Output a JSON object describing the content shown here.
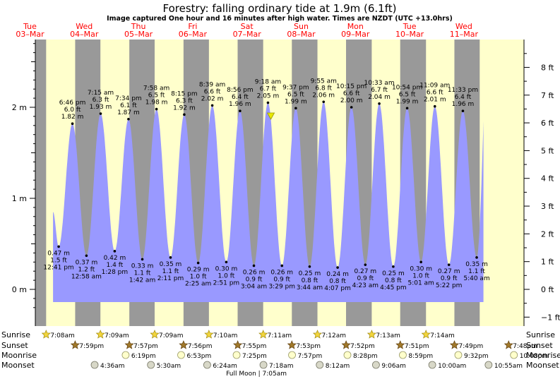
{
  "header": {
    "title": "Forestry: falling  ordinary tide at 1.9m (6.1ft)",
    "subtitle": "Image captured One hour and 16 minutes after high water. Times are NZDT (UTC +13.0hrs)"
  },
  "colors": {
    "day": "#ffffcc",
    "night": "#999999",
    "tide": "#9999ff",
    "date_text": "#ff0000"
  },
  "days": [
    {
      "dow": "Tue",
      "date": "03–Mar"
    },
    {
      "dow": "Wed",
      "date": "04–Mar"
    },
    {
      "dow": "Thu",
      "date": "05–Mar"
    },
    {
      "dow": "Fri",
      "date": "06–Mar"
    },
    {
      "dow": "Sat",
      "date": "07–Mar"
    },
    {
      "dow": "Sun",
      "date": "08–Mar"
    },
    {
      "dow": "Mon",
      "date": "09–Mar"
    },
    {
      "dow": "Tue",
      "date": "10–Mar"
    },
    {
      "dow": "Wed",
      "date": "11–Mar"
    }
  ],
  "chart_data": {
    "type": "area",
    "y_axis_left": {
      "unit": "m",
      "ticks": [
        "0 m",
        "1 m",
        "2 m"
      ],
      "ylim": [
        -0.3,
        2.8
      ]
    },
    "y_axis_right": {
      "unit": "ft",
      "ticks": [
        "−1 ft",
        "0 ft",
        "1 ft",
        "2 ft",
        "3 ft",
        "4 ft",
        "5 ft",
        "6 ft",
        "7 ft",
        "8 ft"
      ]
    },
    "x_start_hours_from_midnight_tue": 0,
    "extremes": [
      {
        "type": "low",
        "time": "12:41 pm",
        "m": 0.47,
        "ft": "1.5 ft",
        "m_label": "0.47 m",
        "h": 12.68
      },
      {
        "type": "high",
        "time": "6:46 pm",
        "m": 1.82,
        "ft": "6.0 ft",
        "m_label": "1.82 m",
        "h": 18.77
      },
      {
        "type": "low",
        "time": "12:58 am",
        "m": 0.37,
        "ft": "1.2 ft",
        "m_label": "0.37 m",
        "h": 24.97
      },
      {
        "type": "high",
        "time": "7:15 am",
        "m": 1.93,
        "ft": "6.3 ft",
        "m_label": "1.93 m",
        "h": 31.25
      },
      {
        "type": "low",
        "time": "1:28 pm",
        "m": 0.42,
        "ft": "1.4 ft",
        "m_label": "0.42 m",
        "h": 37.47
      },
      {
        "type": "high",
        "time": "7:34 pm",
        "m": 1.87,
        "ft": "6.1 ft",
        "m_label": "1.87 m",
        "h": 43.57
      },
      {
        "type": "low",
        "time": "1:42 am",
        "m": 0.33,
        "ft": "1.1 ft",
        "m_label": "0.33 m",
        "h": 49.7
      },
      {
        "type": "high",
        "time": "7:58 am",
        "m": 1.98,
        "ft": "6.5 ft",
        "m_label": "1.98 m",
        "h": 55.97
      },
      {
        "type": "low",
        "time": "2:11 pm",
        "m": 0.35,
        "ft": "1.1 ft",
        "m_label": "0.35 m",
        "h": 62.18
      },
      {
        "type": "high",
        "time": "8:15 pm",
        "m": 1.92,
        "ft": "6.3 ft",
        "m_label": "1.92 m",
        "h": 68.25
      },
      {
        "type": "low",
        "time": "2:25 am",
        "m": 0.29,
        "ft": "1.0 ft",
        "m_label": "0.29 m",
        "h": 74.42
      },
      {
        "type": "high",
        "time": "8:39 am",
        "m": 2.02,
        "ft": "6.6 ft",
        "m_label": "2.02 m",
        "h": 80.65
      },
      {
        "type": "low",
        "time": "2:51 pm",
        "m": 0.3,
        "ft": "1.0 ft",
        "m_label": "0.30 m",
        "h": 86.85
      },
      {
        "type": "high",
        "time": "8:56 pm",
        "m": 1.96,
        "ft": "6.4 ft",
        "m_label": "1.96 m",
        "h": 92.93
      },
      {
        "type": "low",
        "time": "3:04 am",
        "m": 0.26,
        "ft": "0.9 ft",
        "m_label": "0.26 m",
        "h": 99.07
      },
      {
        "type": "high",
        "time": "9:18 am",
        "m": 2.05,
        "ft": "6.7 ft",
        "m_label": "2.05 m",
        "h": 105.3
      },
      {
        "type": "low",
        "time": "3:29 pm",
        "m": 0.26,
        "ft": "0.9 ft",
        "m_label": "0.26 m",
        "h": 111.48
      },
      {
        "type": "high",
        "time": "9:37 pm",
        "m": 1.99,
        "ft": "6.5 ft",
        "m_label": "1.99 m",
        "h": 117.62
      },
      {
        "type": "low",
        "time": "3:44 am",
        "m": 0.25,
        "ft": "0.8 ft",
        "m_label": "0.25 m",
        "h": 123.73
      },
      {
        "type": "high",
        "time": "9:55 am",
        "m": 2.06,
        "ft": "6.8 ft",
        "m_label": "2.06 m",
        "h": 129.92
      },
      {
        "type": "low",
        "time": "4:07 pm",
        "m": 0.24,
        "ft": "0.8 ft",
        "m_label": "0.24 m",
        "h": 136.12
      },
      {
        "type": "high",
        "time": "10:15 pm",
        "m": 2.0,
        "ft": "6.6 ft",
        "m_label": "2.00 m",
        "h": 142.25
      },
      {
        "type": "low",
        "time": "4:23 am",
        "m": 0.27,
        "ft": "0.9 ft",
        "m_label": "0.27 m",
        "h": 148.38
      },
      {
        "type": "high",
        "time": "10:33 am",
        "m": 2.04,
        "ft": "6.7 ft",
        "m_label": "2.04 m",
        "h": 154.55
      },
      {
        "type": "low",
        "time": "4:45 pm",
        "m": 0.25,
        "ft": "0.8 ft",
        "m_label": "0.25 m",
        "h": 160.75
      },
      {
        "type": "high",
        "time": "10:54 pm",
        "m": 1.99,
        "ft": "6.5 ft",
        "m_label": "1.99 m",
        "h": 166.9
      },
      {
        "type": "low",
        "time": "5:01 am",
        "m": 0.3,
        "ft": "1.0 ft",
        "m_label": "0.30 m",
        "h": 173.02
      },
      {
        "type": "high",
        "time": "11:09 am",
        "m": 2.01,
        "ft": "6.6 ft",
        "m_label": "2.01 m",
        "h": 179.15
      },
      {
        "type": "low",
        "time": "5:22 pm",
        "m": 0.27,
        "ft": "0.9 ft",
        "m_label": "0.27 m",
        "h": 185.37
      },
      {
        "type": "high",
        "time": "11:33 pm",
        "m": 1.96,
        "ft": "6.4 ft",
        "m_label": "1.96 m",
        "h": 191.55
      },
      {
        "type": "low",
        "time": "5:40 am",
        "m": 0.35,
        "ft": "1.1 ft",
        "m_label": "0.35 m",
        "h": 197.67
      }
    ],
    "night_periods_hours": [
      [
        0,
        7.13
      ],
      [
        19.98,
        31.15
      ],
      [
        43.95,
        55.15
      ],
      [
        67.93,
        79.17
      ],
      [
        91.88,
        103.18
      ],
      [
        115.87,
        127.2
      ],
      [
        139.85,
        151.22
      ],
      [
        163.82,
        175.23
      ],
      [
        187.8,
        199.0
      ]
    ]
  },
  "astro": {
    "row_labels": [
      "Sunrise",
      "Sunset",
      "Moonrise",
      "Moonset"
    ],
    "sunrise": [
      {
        "time": "7:08am",
        "h": 7.13
      },
      {
        "time": "7:09am",
        "h": 31.15
      },
      {
        "time": "7:09am",
        "h": 55.15
      },
      {
        "time": "7:10am",
        "h": 79.17
      },
      {
        "time": "7:11am",
        "h": 103.18
      },
      {
        "time": "7:12am",
        "h": 127.2
      },
      {
        "time": "7:13am",
        "h": 151.22
      },
      {
        "time": "7:14am",
        "h": 175.23
      }
    ],
    "sunset": [
      {
        "time": "7:59pm",
        "h": 19.98
      },
      {
        "time": "7:57pm",
        "h": 43.95
      },
      {
        "time": "7:56pm",
        "h": 67.93
      },
      {
        "time": "7:55pm",
        "h": 91.92
      },
      {
        "time": "7:53pm",
        "h": 115.88
      },
      {
        "time": "7:52pm",
        "h": 139.87
      },
      {
        "time": "7:51pm",
        "h": 163.85
      },
      {
        "time": "7:49pm",
        "h": 187.82
      },
      {
        "time": "7:48pm",
        "h": 211.8
      }
    ],
    "moonrise": [
      {
        "time": "6:19pm",
        "h": 42.32
      },
      {
        "time": "6:53pm",
        "h": 66.88
      },
      {
        "time": "7:25pm",
        "h": 91.42
      },
      {
        "time": "7:57pm",
        "h": 115.95
      },
      {
        "time": "8:28pm",
        "h": 140.47
      },
      {
        "time": "8:59pm",
        "h": 164.98
      },
      {
        "time": "9:32pm",
        "h": 189.53
      },
      {
        "time": "10:08pm",
        "h": 214.13
      }
    ],
    "moonset": [
      {
        "time": "4:36am",
        "h": 28.6
      },
      {
        "time": "5:30am",
        "h": 53.5
      },
      {
        "time": "6:24am",
        "h": 78.4
      },
      {
        "time": "7:18am",
        "h": 103.3
      },
      {
        "time": "8:12am",
        "h": 128.2
      },
      {
        "time": "9:06am",
        "h": 153.1
      },
      {
        "time": "10:00am",
        "h": 178.0
      },
      {
        "time": "10:55am",
        "h": 202.92
      }
    ],
    "full_moon": "Full Moon | 7:05am"
  }
}
